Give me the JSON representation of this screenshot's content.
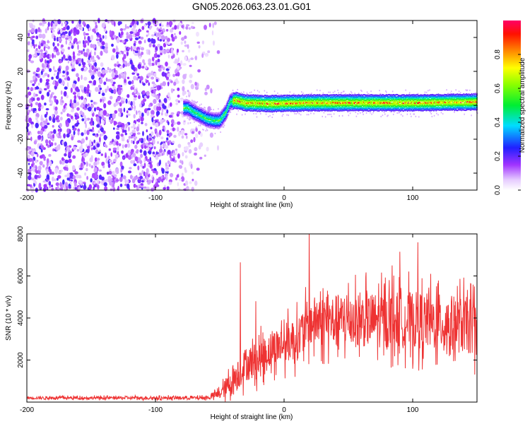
{
  "title": "GN05.2026.063.23.01.G01",
  "colors": {
    "snr_line": "#ee3333",
    "frame": "#000000",
    "background": "#ffffff"
  },
  "chart_data": [
    {
      "type": "heatmap",
      "name": "spectrogram",
      "xlabel": "Height of straight line (km)",
      "ylabel": "Frequency (Hz)",
      "xlim": [
        -200,
        150
      ],
      "ylim": [
        -50,
        50
      ],
      "x_ticks": [
        -200,
        -100,
        0,
        100
      ],
      "x_tick_labels": [
        "-200",
        "-100",
        "0",
        "100"
      ],
      "y_ticks": [
        -40,
        -20,
        0,
        20,
        40
      ],
      "y_tick_labels": [
        "-40",
        "-20",
        "0",
        "20",
        "40"
      ],
      "colorbar": {
        "label": "Normalized spectral amplitude",
        "range": [
          0,
          1
        ],
        "ticks": [
          0,
          0.2,
          0.4,
          0.6,
          0.8
        ],
        "tick_labels": [
          "0.0",
          "0.2",
          "0.4",
          "0.6",
          "0.8"
        ]
      },
      "noise_region_km": [
        -200,
        -65
      ],
      "carrier_track": {
        "x_km": [
          -75,
          -70,
          -65,
          -60,
          -55,
          -50,
          -45,
          -42,
          -38,
          -30,
          -10,
          20,
          60,
          100,
          150
        ],
        "freq_hz": [
          -1.5,
          -4,
          -6,
          -8,
          -9,
          -9,
          -4,
          2,
          3,
          1.5,
          1,
          1.5,
          1.5,
          1.5,
          2
        ]
      }
    },
    {
      "type": "line",
      "name": "snr",
      "xlabel": "Height of straight line (km)",
      "ylabel": "SNR (10 * v/v)",
      "xlim": [
        -200,
        150
      ],
      "ylim": [
        0,
        8000
      ],
      "x_ticks": [
        -200,
        -100,
        0,
        100
      ],
      "x_tick_labels": [
        "-200",
        "-100",
        "0",
        "100"
      ],
      "y_ticks": [
        2000,
        4000,
        6000,
        8000
      ],
      "y_tick_labels": [
        "2000",
        "4000",
        "6000",
        "8000"
      ],
      "envelope": {
        "x_km": [
          -200,
          -60,
          -50,
          -40,
          -30,
          -20,
          -10,
          0,
          10,
          20,
          50,
          100,
          150
        ],
        "mean": [
          200,
          200,
          400,
          1000,
          1800,
          2000,
          2500,
          2800,
          3000,
          3800,
          3900,
          3900,
          3600
        ],
        "spread": [
          80,
          100,
          300,
          900,
          1000,
          1100,
          1100,
          1200,
          1300,
          1500,
          1600,
          1700,
          1700
        ]
      },
      "peaks": [
        {
          "x": -34,
          "y": 6650
        },
        {
          "x": -22,
          "y": 4800
        },
        {
          "x": 19.5,
          "y": 8000
        },
        {
          "x": 90,
          "y": 7150
        },
        {
          "x": 104,
          "y": 7600
        },
        {
          "x": 84,
          "y": 6500
        },
        {
          "x": 148,
          "y": 5500
        }
      ]
    }
  ]
}
